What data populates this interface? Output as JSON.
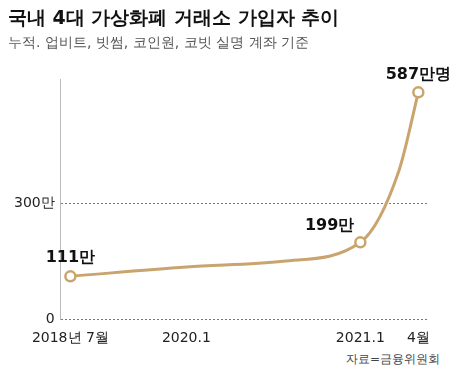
{
  "chart_data": {
    "type": "line",
    "title": "국내 4대 가상화폐 거래소 가입자 추이",
    "subtitle": "누적. 업비트, 빗썸, 코인원, 코빗 실명 계좌 기준",
    "source": "자료=금융위원회",
    "categories": [
      "2018년 7월",
      null,
      null,
      null,
      null,
      null,
      "2020.1",
      null,
      null,
      null,
      null,
      null,
      null,
      null,
      null,
      "2021.1",
      null,
      null,
      "4월"
    ],
    "values": [
      111,
      null,
      null,
      null,
      null,
      null,
      135,
      null,
      null,
      null,
      null,
      150,
      null,
      null,
      null,
      199,
      null,
      385,
      587
    ],
    "value_labels": [
      "111만",
      null,
      null,
      null,
      null,
      null,
      null,
      null,
      null,
      null,
      null,
      null,
      null,
      null,
      null,
      "199만",
      null,
      null,
      "587만명"
    ],
    "color": "#c9a46e",
    "marker": "circle",
    "ylim": [
      0,
      620
    ],
    "yticks": [
      0,
      {
        "value": 300,
        "label": "300만"
      }
    ],
    "grid": true,
    "data_labels": true
  }
}
